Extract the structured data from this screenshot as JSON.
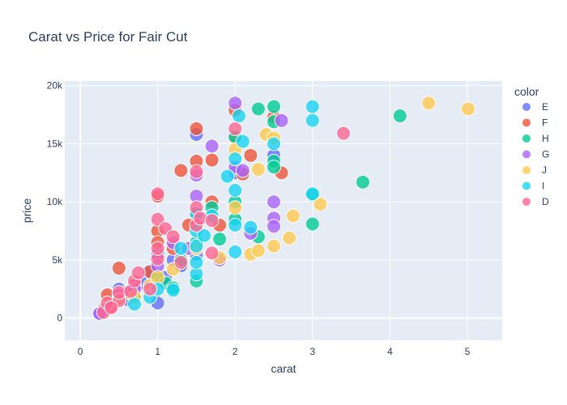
{
  "chart_data": {
    "type": "scatter",
    "title": "Carat vs Price for Fair Cut",
    "xlabel": "carat",
    "ylabel": "price",
    "xlim": [
      -0.2,
      5.45
    ],
    "ylim": [
      -1900,
      20400
    ],
    "x_ticks": [
      0,
      1,
      2,
      3,
      4,
      5
    ],
    "x_tick_labels": [
      "0",
      "1",
      "2",
      "3",
      "4",
      "5"
    ],
    "y_ticks": [
      0,
      5000,
      10000,
      15000,
      20000
    ],
    "y_tick_labels": [
      "0",
      "5k",
      "10k",
      "15k",
      "20k"
    ],
    "grid": true,
    "legend_title": "color",
    "legend_position": "right",
    "plot_background": "#E5ECF6",
    "series": [
      {
        "name": "E",
        "color": "#636efa",
        "points": [
          [
            0.3,
            600
          ],
          [
            0.45,
            1500
          ],
          [
            0.5,
            2500
          ],
          [
            0.7,
            2000
          ],
          [
            0.8,
            3000
          ],
          [
            0.9,
            4000
          ],
          [
            1.0,
            5500
          ],
          [
            1.0,
            1300
          ],
          [
            1.1,
            3500
          ],
          [
            1.2,
            5000
          ],
          [
            1.5,
            9000
          ],
          [
            1.5,
            15800
          ],
          [
            1.5,
            5500
          ],
          [
            2.0,
            12500
          ],
          [
            2.5,
            14000
          ],
          [
            0.25,
            450
          ],
          [
            0.6,
            1600
          ],
          [
            1.3,
            4500
          ]
        ]
      },
      {
        "name": "F",
        "color": "#ef553b",
        "points": [
          [
            0.3,
            700
          ],
          [
            0.35,
            2000
          ],
          [
            0.5,
            1800
          ],
          [
            0.5,
            4300
          ],
          [
            0.7,
            2800
          ],
          [
            0.9,
            4000
          ],
          [
            1.0,
            7500
          ],
          [
            1.0,
            6500
          ],
          [
            1.0,
            10500
          ],
          [
            1.4,
            8000
          ],
          [
            1.5,
            16300
          ],
          [
            1.5,
            13500
          ],
          [
            1.3,
            12700
          ],
          [
            1.7,
            13600
          ],
          [
            2.0,
            17900
          ],
          [
            2.0,
            15500
          ],
          [
            2.1,
            12400
          ],
          [
            2.5,
            17300
          ],
          [
            2.6,
            12500
          ],
          [
            1.7,
            10000
          ],
          [
            0.4,
            1000
          ],
          [
            0.6,
            2200
          ],
          [
            1.2,
            6000
          ],
          [
            1.8,
            8000
          ],
          [
            2.2,
            14000
          ]
        ]
      },
      {
        "name": "H",
        "color": "#00cc96",
        "points": [
          [
            0.7,
            1800
          ],
          [
            1.0,
            3500
          ],
          [
            1.1,
            3000
          ],
          [
            1.2,
            2600
          ],
          [
            1.5,
            3200
          ],
          [
            1.5,
            6500
          ],
          [
            1.7,
            9500
          ],
          [
            1.8,
            6800
          ],
          [
            2.0,
            10000
          ],
          [
            2.0,
            15600
          ],
          [
            2.3,
            18000
          ],
          [
            2.5,
            18200
          ],
          [
            2.5,
            16900
          ],
          [
            2.5,
            13500
          ],
          [
            2.3,
            7000
          ],
          [
            3.0,
            10600
          ],
          [
            3.0,
            8100
          ],
          [
            3.65,
            11700
          ],
          [
            4.13,
            17400
          ],
          [
            2.0,
            8500
          ],
          [
            1.3,
            5000
          ],
          [
            2.5,
            13000
          ]
        ]
      },
      {
        "name": "G",
        "color": "#ab63fa",
        "points": [
          [
            0.25,
            400
          ],
          [
            0.5,
            2000
          ],
          [
            0.7,
            2500
          ],
          [
            1.0,
            4500
          ],
          [
            1.2,
            6500
          ],
          [
            1.5,
            12300
          ],
          [
            1.5,
            10500
          ],
          [
            1.7,
            14800
          ],
          [
            2.0,
            18500
          ],
          [
            2.0,
            13000
          ],
          [
            2.1,
            12700
          ],
          [
            2.2,
            7300
          ],
          [
            2.5,
            10000
          ],
          [
            2.5,
            8600
          ],
          [
            2.6,
            17000
          ],
          [
            2.5,
            7900
          ],
          [
            1.4,
            6000
          ],
          [
            1.8,
            5000
          ]
        ]
      },
      {
        "name": "J",
        "color": "#fecb52",
        "points": [
          [
            0.5,
            1600
          ],
          [
            0.7,
            1800
          ],
          [
            0.9,
            2800
          ],
          [
            1.0,
            3500
          ],
          [
            1.2,
            4200
          ],
          [
            1.5,
            6000
          ],
          [
            1.8,
            5200
          ],
          [
            2.0,
            9500
          ],
          [
            2.0,
            14500
          ],
          [
            2.2,
            5500
          ],
          [
            2.3,
            5800
          ],
          [
            2.3,
            12800
          ],
          [
            2.4,
            15800
          ],
          [
            2.5,
            15500
          ],
          [
            2.5,
            6200
          ],
          [
            2.7,
            6900
          ],
          [
            2.75,
            8800
          ],
          [
            3.1,
            9800
          ],
          [
            4.5,
            18500
          ],
          [
            5.01,
            18000
          ]
        ]
      },
      {
        "name": "I",
        "color": "#19d3f3",
        "points": [
          [
            0.7,
            1200
          ],
          [
            0.9,
            1800
          ],
          [
            1.0,
            2500
          ],
          [
            1.2,
            2400
          ],
          [
            1.5,
            3800
          ],
          [
            1.5,
            4800
          ],
          [
            1.5,
            6200
          ],
          [
            1.5,
            7500
          ],
          [
            1.5,
            9000
          ],
          [
            1.6,
            7100
          ],
          [
            1.9,
            12200
          ],
          [
            2.0,
            5700
          ],
          [
            2.0,
            8000
          ],
          [
            2.0,
            11000
          ],
          [
            2.0,
            13700
          ],
          [
            2.05,
            17400
          ],
          [
            2.1,
            15200
          ],
          [
            2.2,
            7800
          ],
          [
            2.5,
            15000
          ],
          [
            3.0,
            18200
          ],
          [
            3.0,
            17000
          ],
          [
            3.0,
            10700
          ],
          [
            1.3,
            6000
          ],
          [
            1.7,
            8800
          ]
        ]
      },
      {
        "name": "D",
        "color": "#ff6692",
        "points": [
          [
            0.3,
            500
          ],
          [
            0.35,
            1300
          ],
          [
            0.5,
            1500
          ],
          [
            0.5,
            2200
          ],
          [
            0.65,
            2300
          ],
          [
            0.7,
            3200
          ],
          [
            0.75,
            3900
          ],
          [
            0.9,
            2500
          ],
          [
            1.0,
            5100
          ],
          [
            1.0,
            6000
          ],
          [
            1.0,
            8500
          ],
          [
            1.0,
            10700
          ],
          [
            1.1,
            7700
          ],
          [
            1.2,
            7000
          ],
          [
            1.5,
            8000
          ],
          [
            1.5,
            9500
          ],
          [
            1.5,
            12600
          ],
          [
            1.55,
            8600
          ],
          [
            1.7,
            5600
          ],
          [
            1.7,
            8400
          ],
          [
            2.0,
            16300
          ],
          [
            3.4,
            15900
          ],
          [
            0.4,
            900
          ],
          [
            1.3,
            4800
          ]
        ]
      }
    ]
  }
}
